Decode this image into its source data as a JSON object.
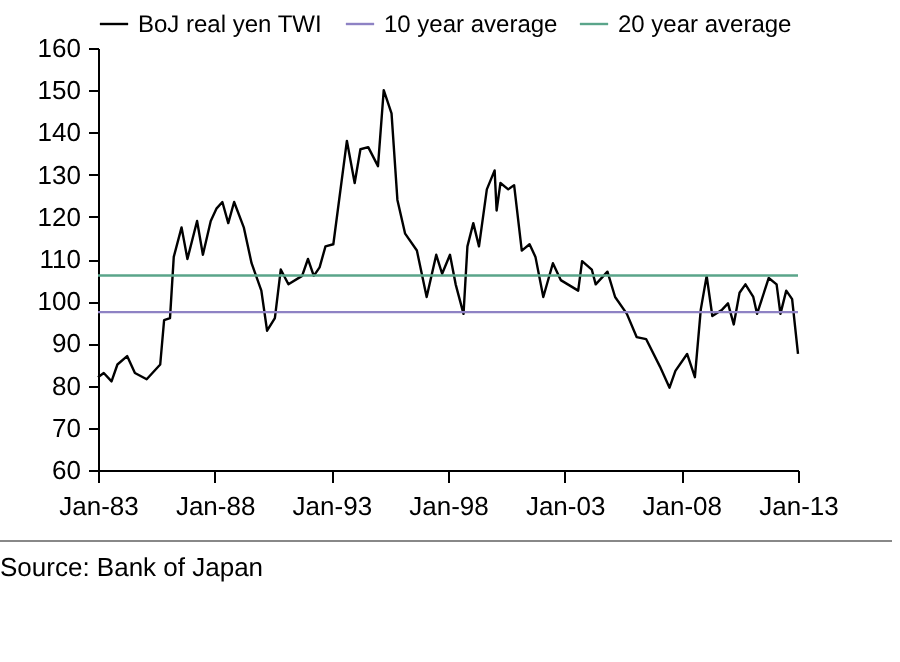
{
  "chart_data": {
    "type": "line",
    "legend": "top",
    "xlim": [
      "1983-01",
      "2013-01"
    ],
    "xticks": [
      {
        "value": "1983-01",
        "label": "Jan-83"
      },
      {
        "value": "1988-01",
        "label": "Jan-88"
      },
      {
        "value": "1993-01",
        "label": "Jan-93"
      },
      {
        "value": "1998-01",
        "label": "Jan-98"
      },
      {
        "value": "2003-01",
        "label": "Jan-03"
      },
      {
        "value": "2008-01",
        "label": "Jan-08"
      },
      {
        "value": "2013-01",
        "label": "Jan-13"
      }
    ],
    "ylim": [
      60,
      160
    ],
    "yticks": [
      60,
      70,
      80,
      90,
      100,
      110,
      120,
      130,
      140,
      150,
      160
    ],
    "series": [
      {
        "name": "BoJ real yen TWI",
        "color": "#000000",
        "x": [
          "1983-01",
          "1983-04",
          "1983-08",
          "1983-11",
          "1984-04",
          "1984-08",
          "1985-02",
          "1985-09",
          "1985-11",
          "1986-02",
          "1986-04",
          "1986-08",
          "1986-11",
          "1987-04",
          "1987-07",
          "1987-11",
          "1988-02",
          "1988-05",
          "1988-08",
          "1988-11",
          "1989-04",
          "1989-08",
          "1990-01",
          "1990-04",
          "1990-08",
          "1990-11",
          "1991-03",
          "1991-10",
          "1992-01",
          "1992-04",
          "1992-07",
          "1992-10",
          "1993-02",
          "1993-09",
          "1994-01",
          "1994-04",
          "1994-08",
          "1995-01",
          "1995-04",
          "1995-08",
          "1995-11",
          "1996-03",
          "1996-09",
          "1997-02",
          "1997-07",
          "1997-10",
          "1998-02",
          "1998-05",
          "1998-09",
          "1998-11",
          "1999-02",
          "1999-05",
          "1999-09",
          "2000-01",
          "2000-02",
          "2000-04",
          "2000-08",
          "2000-11",
          "2001-03",
          "2001-07",
          "2001-10",
          "2002-02",
          "2002-07",
          "2002-11",
          "2003-08",
          "2003-10",
          "2004-03",
          "2004-05",
          "2004-11",
          "2005-03",
          "2005-09",
          "2006-02",
          "2006-07",
          "2007-02",
          "2007-07",
          "2007-10",
          "2008-04",
          "2008-08",
          "2008-11",
          "2009-02",
          "2009-05",
          "2009-10",
          "2010-01",
          "2010-04",
          "2010-07",
          "2010-10",
          "2011-02",
          "2011-04",
          "2011-10",
          "2012-02",
          "2012-04",
          "2012-07",
          "2012-10",
          "2013-01"
        ],
        "values": [
          82,
          83,
          81,
          85,
          87,
          83,
          81.5,
          85,
          95.5,
          96,
          110.5,
          117.5,
          110,
          119,
          111,
          119,
          122,
          123.5,
          118.5,
          123.5,
          117.5,
          109,
          102.5,
          93,
          96,
          107.5,
          104,
          106,
          110,
          106,
          108,
          113,
          113.5,
          138,
          128,
          136,
          136.5,
          132,
          150,
          144.5,
          124,
          116,
          112,
          101,
          111,
          106.5,
          111,
          104,
          97,
          113,
          118.5,
          113,
          126.5,
          131,
          121.5,
          128,
          126.5,
          127.5,
          112,
          113.5,
          110.5,
          101,
          109,
          105,
          102.5,
          109.5,
          107.5,
          104,
          107,
          101,
          97,
          91.5,
          91,
          84.5,
          79.5,
          83.5,
          87.5,
          82,
          98,
          106,
          96.5,
          98,
          99.5,
          94.5,
          102,
          104,
          101,
          97,
          105.5,
          104,
          97,
          102.5,
          100.5,
          87.5
        ]
      },
      {
        "name": "10 year average",
        "color": "#8e82c4",
        "x": [
          "1983-01",
          "2013-01"
        ],
        "values": [
          97.4,
          97.4
        ]
      },
      {
        "name": "20 year average",
        "color": "#5aa58a",
        "x": [
          "1983-01",
          "2013-01"
        ],
        "values": [
          106.1,
          106.1
        ]
      }
    ],
    "annotations": [
      "Source: Bank of Japan"
    ]
  }
}
